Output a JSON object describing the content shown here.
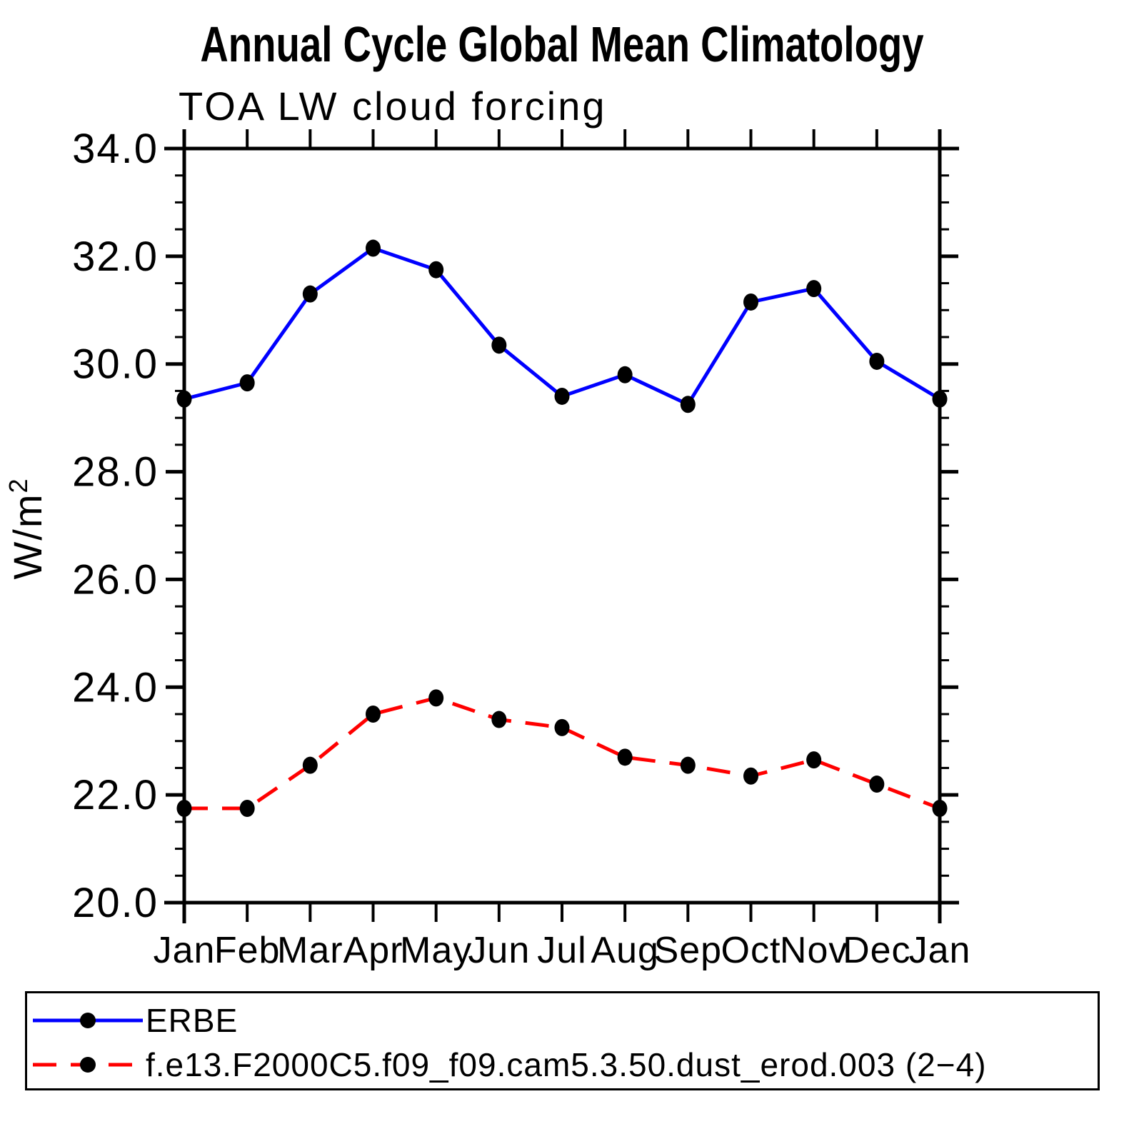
{
  "title": "Annual Cycle Global Mean Climatology",
  "subtitle": "TOA LW cloud forcing",
  "axis_colors": {
    "axis": "#000000",
    "background": "#ffffff"
  },
  "chart_data": {
    "type": "line",
    "categories": [
      "Jan",
      "Feb",
      "Mar",
      "Apr",
      "May",
      "Jun",
      "Jul",
      "Aug",
      "Sep",
      "Oct",
      "Nov",
      "Dec",
      "Jan"
    ],
    "series": [
      {
        "name": "ERBE",
        "color": "#0000ff",
        "line_style": "solid",
        "marker": "filled-black-dot",
        "values": [
          29.35,
          29.65,
          31.3,
          32.15,
          31.75,
          30.35,
          29.4,
          29.8,
          29.25,
          31.15,
          31.4,
          30.05,
          29.35
        ]
      },
      {
        "name": "f.e13.F2000C5.f09_f09.cam5.3.50.dust_erod.003 (2−4)",
        "color": "#ff0000",
        "line_style": "dashed",
        "marker": "filled-black-dot",
        "values": [
          21.75,
          21.75,
          22.55,
          23.5,
          23.8,
          23.4,
          23.25,
          22.7,
          22.55,
          22.35,
          22.65,
          22.2,
          21.75
        ]
      }
    ],
    "xlabel": "",
    "ylabel": "W/m²",
    "ylabel_base": "W/m",
    "ylabel_sup": "2",
    "ylim": [
      20,
      34
    ],
    "yticks": [
      20,
      22,
      24,
      26,
      28,
      30,
      32,
      34
    ],
    "ytick_labels": [
      "20.0",
      "22.0",
      "24.0",
      "26.0",
      "28.0",
      "30.0",
      "32.0",
      "34.0"
    ],
    "yminor_step": 0.5,
    "grid": false,
    "legend_position": "bottom-left-box"
  }
}
